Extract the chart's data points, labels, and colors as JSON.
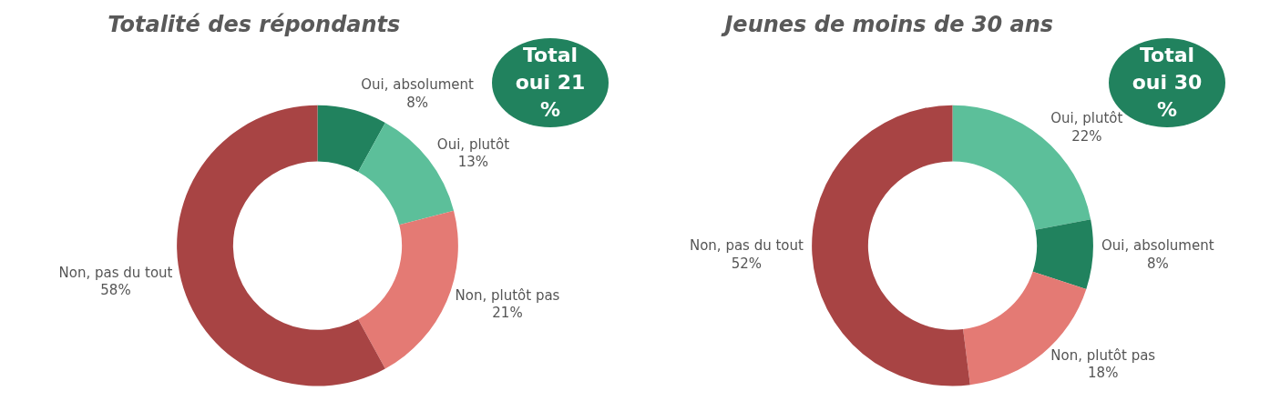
{
  "chart_data": [
    {
      "type": "donut",
      "title": "Totalité des répondants",
      "categories": [
        "Oui, absolument",
        "Oui, plutôt",
        "Non, plutôt pas",
        "Non, pas du tout"
      ],
      "values": [
        8,
        13,
        21,
        58
      ],
      "value_labels": [
        "8%",
        "13%",
        "21%",
        "58%"
      ],
      "colors": [
        "#21825e",
        "#5cbf9a",
        "#e47a74",
        "#a84444"
      ],
      "annotations": [
        "Total oui 21 %"
      ],
      "legend": false
    },
    {
      "type": "donut",
      "title": "Jeunes de moins de 30 ans",
      "categories": [
        "Oui, plutôt",
        "Oui, absolument",
        "Non, plutôt pas",
        "Non, pas du tout"
      ],
      "values": [
        22,
        8,
        18,
        52
      ],
      "value_labels": [
        "22%",
        "8%",
        "18%",
        "52%"
      ],
      "colors": [
        "#5cbf9a",
        "#21825e",
        "#e47a74",
        "#a84444"
      ],
      "annotations": [
        "Total oui 30 %"
      ],
      "legend": false
    }
  ]
}
